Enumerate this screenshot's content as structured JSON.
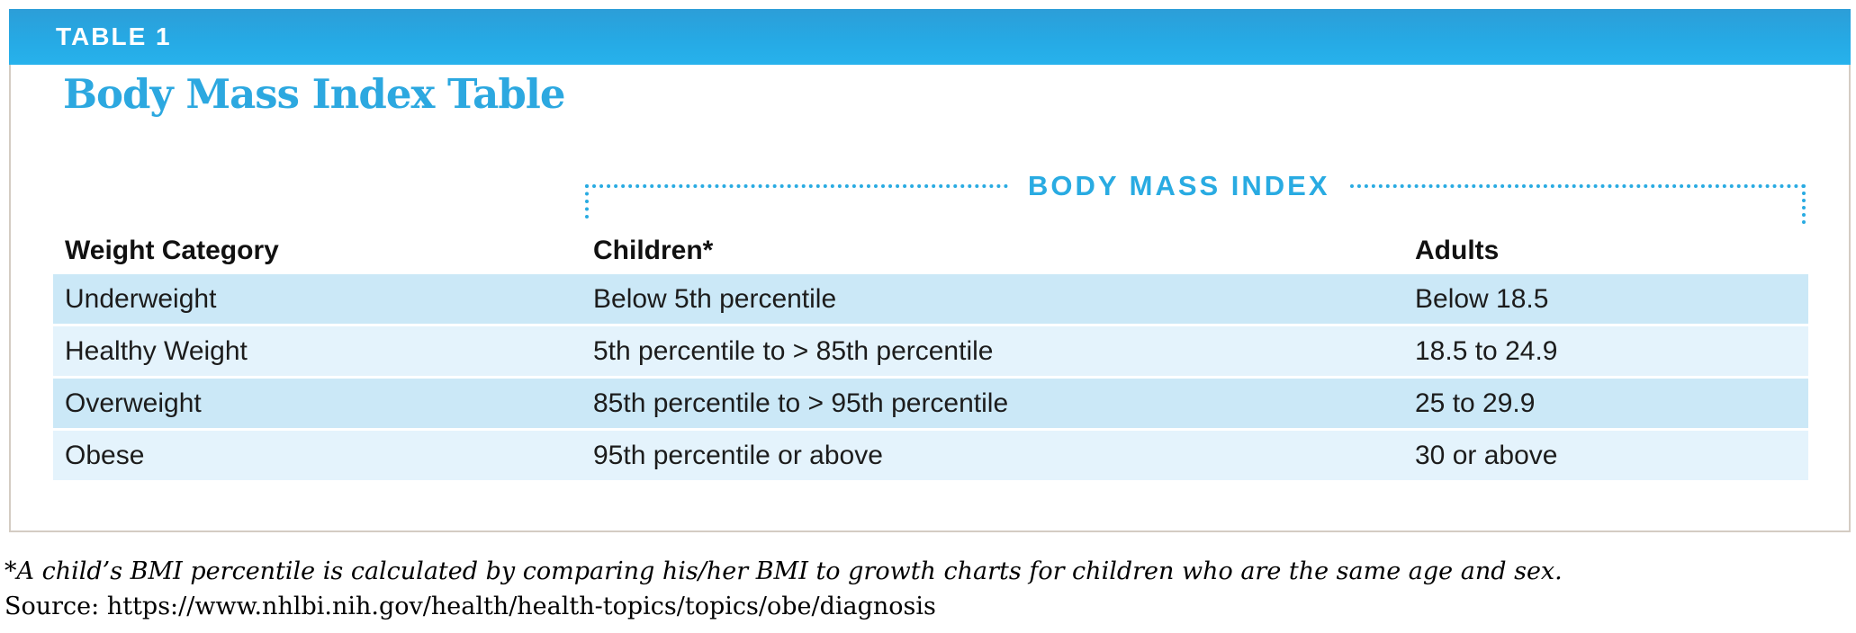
{
  "header": {
    "table_label": "TABLE 1"
  },
  "card": {
    "title": "Body Mass Index Table",
    "bmi_banner": "BODY MASS INDEX",
    "table": {
      "columns": {
        "category": "Weight Category",
        "children": "Children*",
        "adults": "Adults"
      },
      "rows": [
        {
          "category": "Underweight",
          "children": "Below 5th percentile",
          "adults": "Below 18.5"
        },
        {
          "category": "Healthy Weight",
          "children": "5th percentile to > 85th percentile",
          "adults": "18.5 to 24.9"
        },
        {
          "category": "Overweight",
          "children": "85th percentile to > 95th percentile",
          "adults": "25 to 29.9"
        },
        {
          "category": "Obese",
          "children": "95th percentile or above",
          "adults": "30 or above"
        }
      ]
    }
  },
  "footnotes": {
    "asterisk_note": "*A child’s BMI percentile is calculated by comparing his/her BMI to growth charts for children who are the same age and sex.",
    "source": "Source: https://www.nhlbi.nih.gov/health/health-topics/topics/obe/diagnosis"
  },
  "colors": {
    "accent_blue": "#29ABE2",
    "bar_gradient_top": "#2C9ED8",
    "bar_gradient_bottom": "#27B2EC",
    "row_dark": "#CBE8F7",
    "row_light": "#E4F3FC",
    "card_border": "#D4CCC3"
  }
}
